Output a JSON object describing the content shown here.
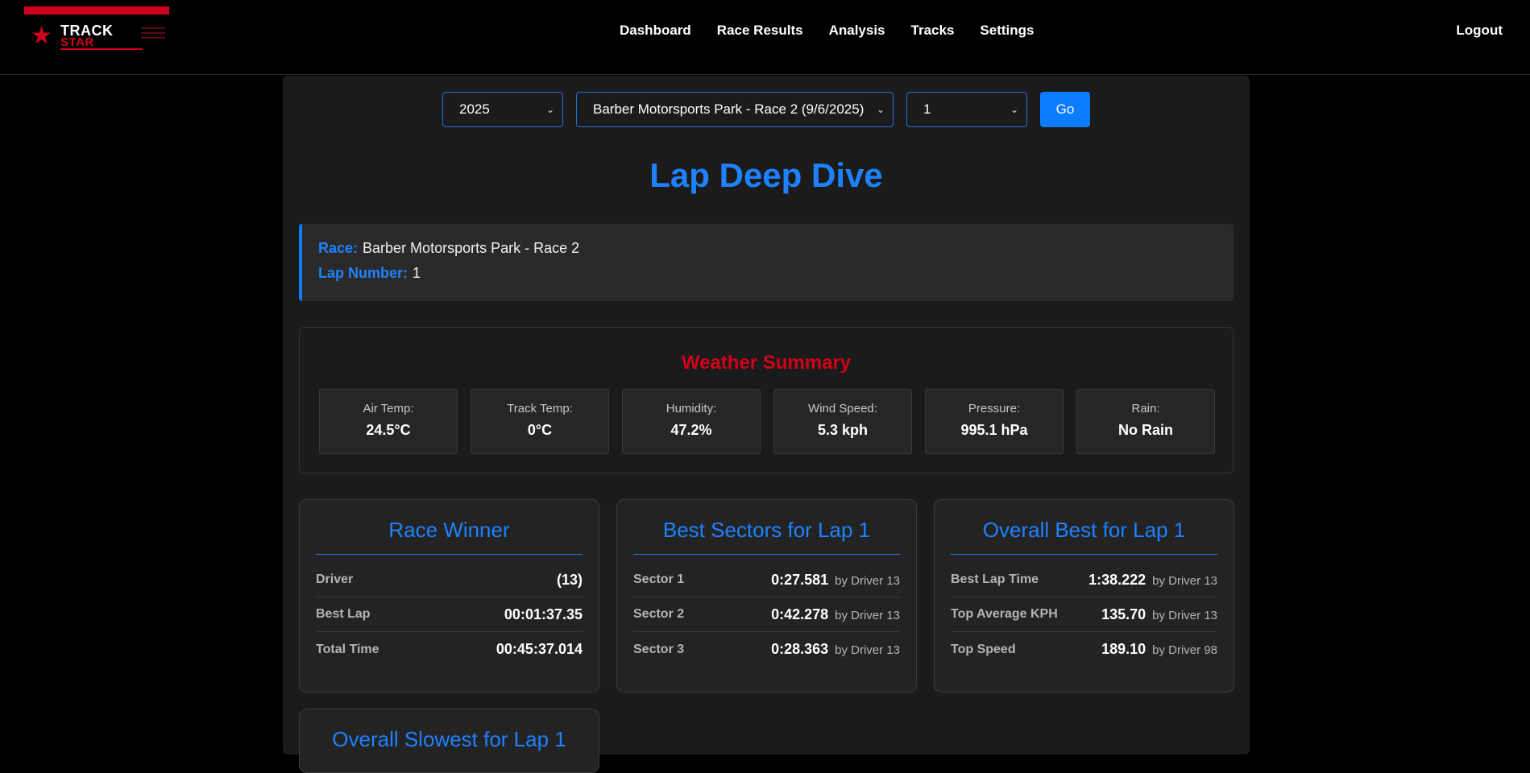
{
  "brand": {
    "line1": "TRACK",
    "line2": "STAR"
  },
  "nav": [
    {
      "label": "Dashboard"
    },
    {
      "label": "Race Results"
    },
    {
      "label": "Analysis"
    },
    {
      "label": "Tracks"
    },
    {
      "label": "Settings"
    }
  ],
  "logout": "Logout",
  "filters": {
    "year": "2025",
    "race": "Barber Motorsports Park - Race 2 (9/6/2025)",
    "lap": "1",
    "go": "Go"
  },
  "page_title": "Lap Deep Dive",
  "info": {
    "race_label": "Race:",
    "race_value": "Barber Motorsports Park - Race 2",
    "lap_label": "Lap Number:",
    "lap_value": "1"
  },
  "weather": {
    "title": "Weather Summary",
    "items": [
      {
        "label": "Air Temp:",
        "value": "24.5°C"
      },
      {
        "label": "Track Temp:",
        "value": "0°C"
      },
      {
        "label": "Humidity:",
        "value": "47.2%"
      },
      {
        "label": "Wind Speed:",
        "value": "5.3 kph"
      },
      {
        "label": "Pressure:",
        "value": "995.1 hPa"
      },
      {
        "label": "Rain:",
        "value": "No Rain"
      }
    ]
  },
  "cards": [
    {
      "title": "Race Winner",
      "rows": [
        {
          "key": "Driver",
          "value": "(13)",
          "by": ""
        },
        {
          "key": "Best Lap",
          "value": "00:01:37.35",
          "by": ""
        },
        {
          "key": "Total Time",
          "value": "00:45:37.014",
          "by": ""
        }
      ]
    },
    {
      "title": "Best Sectors for Lap 1",
      "rows": [
        {
          "key": "Sector 1",
          "value": "0:27.581",
          "by": "by Driver 13"
        },
        {
          "key": "Sector 2",
          "value": "0:42.278",
          "by": "by Driver 13"
        },
        {
          "key": "Sector 3",
          "value": "0:28.363",
          "by": "by Driver 13"
        }
      ]
    },
    {
      "title": "Overall Best for Lap 1",
      "rows": [
        {
          "key": "Best Lap Time",
          "value": "1:38.222",
          "by": "by Driver 13"
        },
        {
          "key": "Top Average KPH",
          "value": "135.70",
          "by": "by Driver 13"
        },
        {
          "key": "Top Speed",
          "value": "189.10",
          "by": "by Driver 98"
        }
      ]
    }
  ],
  "slowest_title": "Overall Slowest for Lap 1",
  "colors": {
    "accent": "#1e82ff",
    "brand_red": "#d0021b",
    "button": "#0a7cff"
  }
}
